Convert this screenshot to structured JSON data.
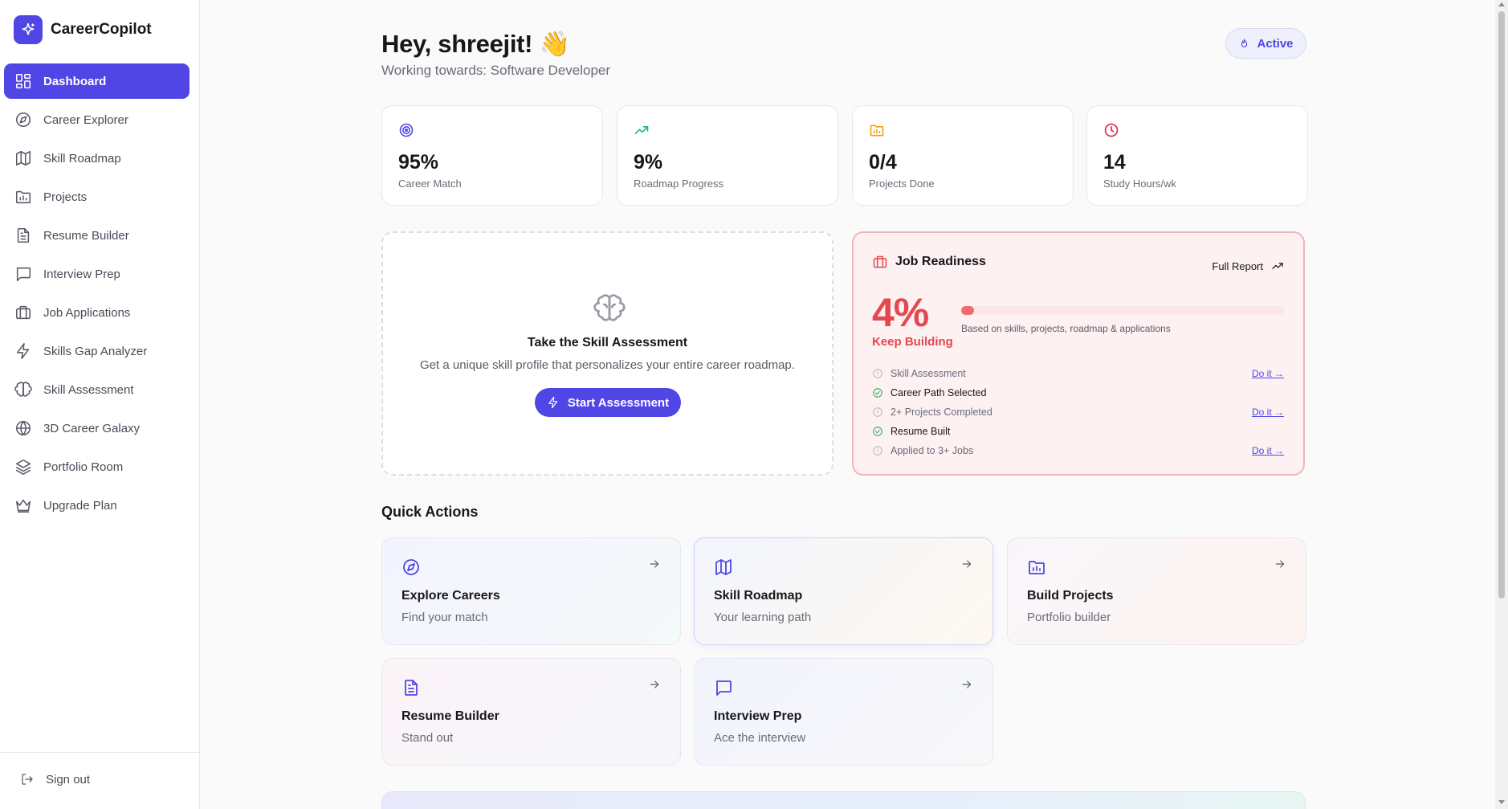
{
  "app": {
    "name": "CareerCopilot",
    "logo_icon": "sparkles-icon"
  },
  "sidebar": {
    "items": [
      {
        "label": "Dashboard",
        "icon": "dashboard-icon",
        "active": true
      },
      {
        "label": "Career Explorer",
        "icon": "compass-icon"
      },
      {
        "label": "Skill Roadmap",
        "icon": "map-icon"
      },
      {
        "label": "Projects",
        "icon": "folder-chart-icon"
      },
      {
        "label": "Resume Builder",
        "icon": "file-text-icon"
      },
      {
        "label": "Interview Prep",
        "icon": "message-square-icon"
      },
      {
        "label": "Job Applications",
        "icon": "briefcase-icon"
      },
      {
        "label": "Skills Gap Analyzer",
        "icon": "lightning-icon"
      },
      {
        "label": "Skill Assessment",
        "icon": "brain-icon"
      },
      {
        "label": "3D Career Galaxy",
        "icon": "globe-icon"
      },
      {
        "label": "Portfolio Room",
        "icon": "layers-icon"
      },
      {
        "label": "Upgrade Plan",
        "icon": "crown-icon"
      }
    ],
    "signout_label": "Sign out"
  },
  "header": {
    "greeting": "Hey, shreejit! 👋",
    "subtitle": "Working towards: Software Developer",
    "status_label": "Active"
  },
  "stats": [
    {
      "value": "95%",
      "label": "Career Match",
      "icon": "target-icon",
      "color": "#4f46e5"
    },
    {
      "value": "9%",
      "label": "Roadmap Progress",
      "icon": "trending-up-icon",
      "color": "#10b981"
    },
    {
      "value": "0/4",
      "label": "Projects Done",
      "icon": "folder-icon",
      "color": "#f59e0b"
    },
    {
      "value": "14",
      "label": "Study Hours/wk",
      "icon": "clock-icon",
      "color": "#e11d48"
    }
  ],
  "assessment": {
    "title": "Take the Skill Assessment",
    "description": "Get a unique skill profile that personalizes your entire career roadmap.",
    "button_label": "Start Assessment"
  },
  "readiness": {
    "title": "Job Readiness",
    "full_report_label": "Full Report",
    "percent_text": "4%",
    "percent": 4,
    "status": "Keep Building",
    "basis": "Based on skills, projects, roadmap & applications",
    "checklist": [
      {
        "label": "Skill Assessment",
        "done": false,
        "action": "Do it →"
      },
      {
        "label": "Career Path Selected",
        "done": true,
        "action": ""
      },
      {
        "label": "2+ Projects Completed",
        "done": false,
        "action": "Do it →"
      },
      {
        "label": "Resume Built",
        "done": true,
        "action": ""
      },
      {
        "label": "Applied to 3+ Jobs",
        "done": false,
        "action": "Do it →"
      }
    ]
  },
  "quick_actions": {
    "title": "Quick Actions",
    "items": [
      {
        "title": "Explore Careers",
        "subtitle": "Find your match",
        "icon": "compass-icon"
      },
      {
        "title": "Skill Roadmap",
        "subtitle": "Your learning path",
        "icon": "map-icon"
      },
      {
        "title": "Build Projects",
        "subtitle": "Portfolio builder",
        "icon": "folder-chart-icon"
      },
      {
        "title": "Resume Builder",
        "subtitle": "Stand out",
        "icon": "file-text-icon"
      },
      {
        "title": "Interview Prep",
        "subtitle": "Ace the interview",
        "icon": "message-square-icon"
      }
    ]
  },
  "colors": {
    "accent": "#4f46e5",
    "danger": "#e5484d",
    "success": "#16a34a"
  }
}
